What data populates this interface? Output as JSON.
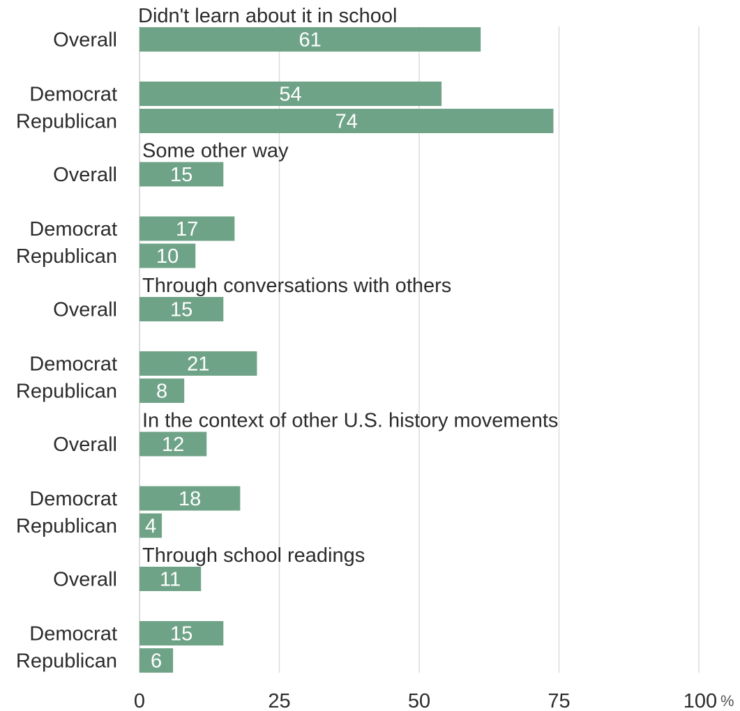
{
  "chart_data": {
    "type": "bar",
    "orientation": "horizontal",
    "bar_color": "#6fa387",
    "xlim": [
      0,
      100
    ],
    "x_ticks": [
      "0",
      "25",
      "50",
      "75",
      "100"
    ],
    "x_unit": "%",
    "grid": true,
    "groups": [
      {
        "title": "Didn't learn about it in school",
        "rows": [
          {
            "label": "Overall",
            "value": 61
          },
          {
            "label": "Democrat",
            "value": 54
          },
          {
            "label": "Republican",
            "value": 74
          }
        ]
      },
      {
        "title": "Some other way",
        "rows": [
          {
            "label": "Overall",
            "value": 15
          },
          {
            "label": "Democrat",
            "value": 17
          },
          {
            "label": "Republican",
            "value": 10
          }
        ]
      },
      {
        "title": "Through conversations with others",
        "rows": [
          {
            "label": "Overall",
            "value": 15
          },
          {
            "label": "Democrat",
            "value": 21
          },
          {
            "label": "Republican",
            "value": 8
          }
        ]
      },
      {
        "title": "In the context of other U.S. history movements",
        "rows": [
          {
            "label": "Overall",
            "value": 12
          },
          {
            "label": "Democrat",
            "value": 18
          },
          {
            "label": "Republican",
            "value": 4
          }
        ]
      },
      {
        "title": "Through school readings",
        "rows": [
          {
            "label": "Overall",
            "value": 11
          },
          {
            "label": "Democrat",
            "value": 15
          },
          {
            "label": "Republican",
            "value": 6
          }
        ]
      }
    ]
  }
}
